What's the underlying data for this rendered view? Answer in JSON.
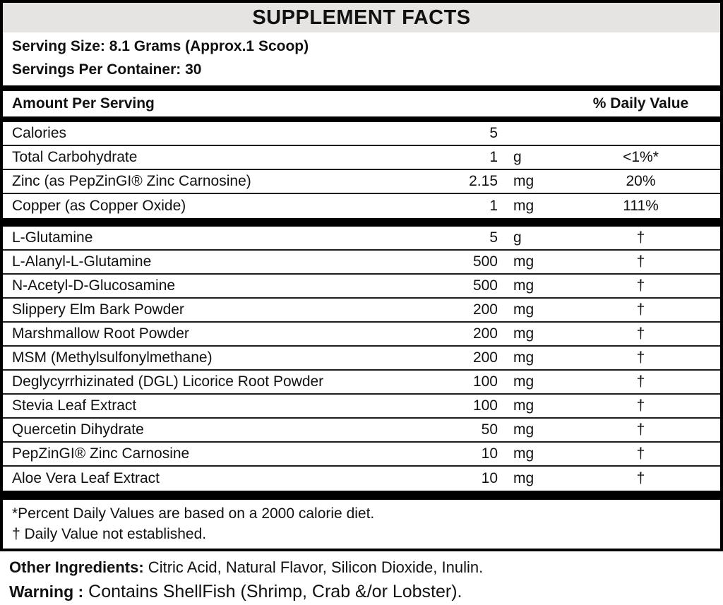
{
  "title": "SUPPLEMENT FACTS",
  "serving": {
    "size_line": "Serving Size: 8.1 Grams (Approx.1 Scoop)",
    "per_container_line": "Servings Per Container: 30"
  },
  "table": {
    "amount_header": "Amount Per Serving",
    "dv_header": "% Daily Value",
    "rows_top": [
      {
        "name": "Calories",
        "amount": "5",
        "unit": "",
        "dv": ""
      },
      {
        "name": "Total Carbohydrate",
        "amount": "1",
        "unit": "g",
        "dv": "<1%*"
      },
      {
        "name": "Zinc (as PepZinGI® Zinc Carnosine)",
        "amount": "2.15",
        "unit": "mg",
        "dv": "20%"
      },
      {
        "name": "Copper (as Copper Oxide)",
        "amount": "1",
        "unit": "mg",
        "dv": "111%"
      }
    ],
    "rows_bottom": [
      {
        "name": "L-Glutamine",
        "amount": "5",
        "unit": "g",
        "dv": "†"
      },
      {
        "name": "L-Alanyl-L-Glutamine",
        "amount": "500",
        "unit": "mg",
        "dv": "†"
      },
      {
        "name": "N-Acetyl-D-Glucosamine",
        "amount": "500",
        "unit": "mg",
        "dv": "†"
      },
      {
        "name": "Slippery Elm Bark Powder",
        "amount": "200",
        "unit": "mg",
        "dv": "†"
      },
      {
        "name": "Marshmallow Root Powder",
        "amount": "200",
        "unit": "mg",
        "dv": "†"
      },
      {
        "name": "MSM (Methylsulfonylmethane)",
        "amount": "200",
        "unit": "mg",
        "dv": "†"
      },
      {
        "name": "Deglycyrrhizinated (DGL) Licorice Root Powder",
        "amount": "100",
        "unit": "mg",
        "dv": "†"
      },
      {
        "name": "Stevia Leaf Extract",
        "amount": "100",
        "unit": "mg",
        "dv": "†"
      },
      {
        "name": "Quercetin Dihydrate",
        "amount": "50",
        "unit": "mg",
        "dv": "†"
      },
      {
        "name": "PepZinGI® Zinc Carnosine",
        "amount": "10",
        "unit": "mg",
        "dv": "†"
      },
      {
        "name": "Aloe Vera Leaf Extract",
        "amount": "10",
        "unit": "mg",
        "dv": "†"
      }
    ]
  },
  "footnotes": {
    "percent_note": "*Percent Daily Values are based on a 2000 calorie diet.",
    "dagger_note": "† Daily Value not established."
  },
  "other_ingredients": {
    "label": "Other Ingredients:",
    "text": " Citric Acid, Natural Flavor, Silicon Dioxide, Inulin."
  },
  "warning": {
    "label": "Warning :",
    "text": " Contains ShellFish (Shrimp, Crab &/or Lobster)."
  },
  "colors": {
    "header_bg": "#e5e4e2",
    "border": "#000000",
    "rule": "#1c1c1c",
    "text": "#111111"
  }
}
